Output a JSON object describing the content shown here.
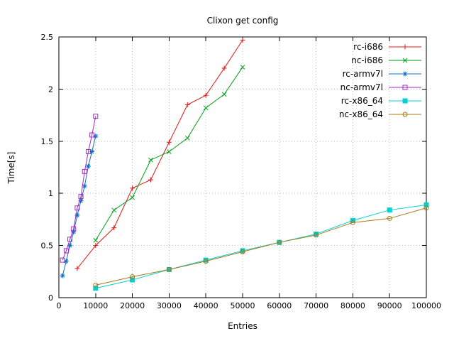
{
  "chart_data": {
    "type": "line",
    "title": "Clixon get config",
    "xlabel": "Entries",
    "ylabel": "Time[s]",
    "xlim": [
      0,
      100000
    ],
    "ylim": [
      0,
      2.5
    ],
    "xticks": [
      0,
      10000,
      20000,
      30000,
      40000,
      50000,
      60000,
      70000,
      80000,
      90000,
      100000
    ],
    "xtick_labels": [
      "0",
      "10000",
      "20000",
      "30000",
      "40000",
      "50000",
      "60000",
      "70000",
      "80000",
      "90000",
      "100000"
    ],
    "yticks": [
      0,
      0.5,
      1,
      1.5,
      2,
      2.5
    ],
    "ytick_labels": [
      "0",
      "0.5",
      "1",
      "1.5",
      "2",
      "2.5"
    ],
    "grid": true,
    "legend_position": "top-right",
    "series": [
      {
        "name": "rc-i686",
        "color": "#e01818",
        "marker": "plus",
        "x": [
          5000,
          10000,
          15000,
          20000,
          25000,
          30000,
          35000,
          40000,
          45000,
          50000
        ],
        "y": [
          0.28,
          0.5,
          0.67,
          1.05,
          1.13,
          1.49,
          1.85,
          1.94,
          2.2,
          2.47
        ]
      },
      {
        "name": "nc-i686",
        "color": "#00a018",
        "marker": "cross",
        "x": [
          10000,
          15000,
          20000,
          25000,
          30000,
          35000,
          40000,
          45000,
          50000
        ],
        "y": [
          0.55,
          0.84,
          0.96,
          1.32,
          1.4,
          1.53,
          1.82,
          1.95,
          2.21
        ]
      },
      {
        "name": "rc-armv7l",
        "color": "#0f6fc5",
        "marker": "asterisk",
        "x": [
          1000,
          2000,
          3000,
          4000,
          5000,
          6000,
          7000,
          8000,
          9000,
          10000
        ],
        "y": [
          0.21,
          0.35,
          0.5,
          0.63,
          0.79,
          0.93,
          1.07,
          1.26,
          1.4,
          1.55
        ]
      },
      {
        "name": "nc-armv7l",
        "color": "#a12cc9",
        "marker": "square-open",
        "x": [
          1000,
          2000,
          3000,
          4000,
          5000,
          6000,
          7000,
          8000,
          9000,
          10000
        ],
        "y": [
          0.36,
          0.45,
          0.56,
          0.66,
          0.86,
          0.97,
          1.21,
          1.4,
          1.56,
          1.74
        ]
      },
      {
        "name": "rc-x86_64",
        "color": "#00d0d0",
        "marker": "square-filled",
        "x": [
          10000,
          20000,
          30000,
          40000,
          50000,
          60000,
          70000,
          80000,
          90000,
          100000
        ],
        "y": [
          0.09,
          0.17,
          0.27,
          0.36,
          0.45,
          0.53,
          0.61,
          0.74,
          0.84,
          0.89
        ]
      },
      {
        "name": "nc-x86_64",
        "color": "#a87818",
        "marker": "circle-open",
        "x": [
          10000,
          20000,
          30000,
          40000,
          50000,
          60000,
          70000,
          80000,
          90000,
          100000
        ],
        "y": [
          0.12,
          0.2,
          0.27,
          0.35,
          0.44,
          0.53,
          0.6,
          0.72,
          0.76,
          0.86
        ]
      }
    ]
  }
}
